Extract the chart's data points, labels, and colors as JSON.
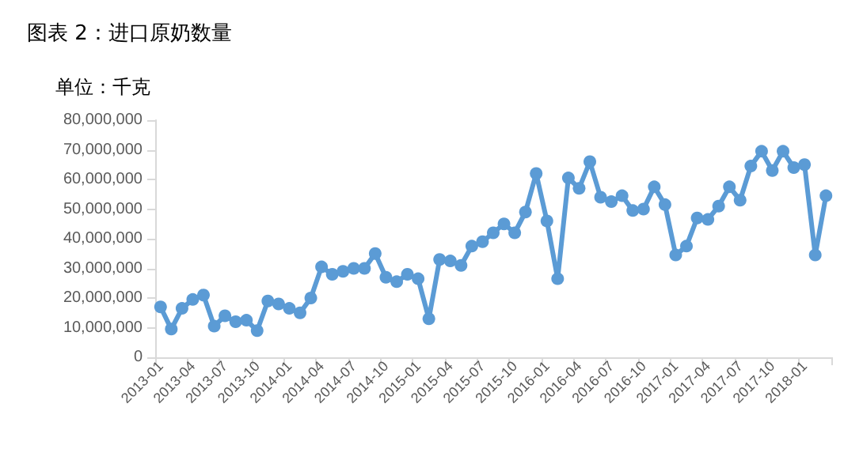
{
  "chart_data": {
    "type": "line",
    "title": "图表 2：进口原奶数量",
    "ylabel": "单位：千克",
    "categories": [
      "2013-01",
      null,
      null,
      "2013-04",
      null,
      null,
      "2013-07",
      null,
      null,
      "2013-10",
      null,
      null,
      "2014-01",
      null,
      null,
      "2014-04",
      null,
      null,
      "2014-07",
      null,
      null,
      "2014-10",
      null,
      null,
      "2015-01",
      null,
      null,
      "2015-04",
      null,
      null,
      "2015-07",
      null,
      null,
      "2015-10",
      null,
      null,
      "2016-01",
      null,
      null,
      "2016-04",
      null,
      null,
      "2016-07",
      null,
      null,
      "2016-10",
      null,
      null,
      "2017-01",
      null,
      null,
      "2017-04",
      null,
      null,
      "2017-07",
      null,
      null,
      "2017-10",
      null,
      null,
      "2018-01",
      null,
      null
    ],
    "series": [
      {
        "color": "#5b9bd5",
        "values": [
          17000000,
          9500000,
          16500000,
          19500000,
          21000000,
          10500000,
          14000000,
          12000000,
          12500000,
          9000000,
          19000000,
          18000000,
          16500000,
          15000000,
          20000000,
          30500000,
          28000000,
          29000000,
          30000000,
          30000000,
          35000000,
          27000000,
          25500000,
          28000000,
          26500000,
          13000000,
          33000000,
          32500000,
          31000000,
          37500000,
          39000000,
          42000000,
          45000000,
          42000000,
          49000000,
          62000000,
          46000000,
          26500000,
          60500000,
          57000000,
          66000000,
          54000000,
          52500000,
          54500000,
          49500000,
          50000000,
          57500000,
          51500000,
          34500000,
          37500000,
          47000000,
          46500000,
          51000000,
          57500000,
          53000000,
          64500000,
          69500000,
          63000000,
          69500000,
          64000000,
          65000000,
          34500000,
          54500000
        ]
      }
    ],
    "ylim": [
      0,
      80000000
    ],
    "yticks": [
      {
        "value": 0,
        "label": "0"
      },
      {
        "value": 10000000,
        "label": "10,000,000"
      },
      {
        "value": 20000000,
        "label": "20,000,000"
      },
      {
        "value": 30000000,
        "label": "30,000,000"
      },
      {
        "value": 40000000,
        "label": "40,000,000"
      },
      {
        "value": 50000000,
        "label": "50,000,000"
      },
      {
        "value": 60000000,
        "label": "60,000,000"
      },
      {
        "value": 70000000,
        "label": "70,000,000"
      },
      {
        "value": 80000000,
        "label": "80,000,000"
      }
    ],
    "grid": false,
    "marker": "circle",
    "line_style": "solid"
  }
}
